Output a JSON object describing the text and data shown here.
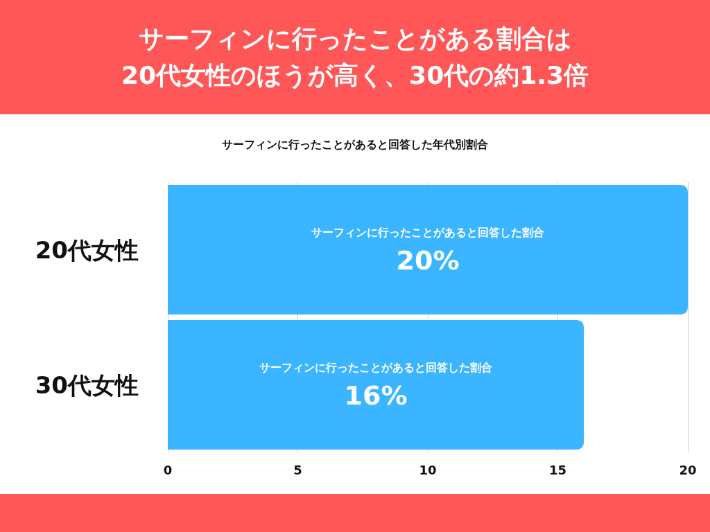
{
  "chart_data": {
    "type": "bar",
    "orientation": "horizontal",
    "title": "サーフィンに行ったことがある割合は\n20代女性のほうが高く、30代の約1.3倍",
    "subtitle": "サーフィンに行ったことがあると回答した年代別割合",
    "categories": [
      "20代女性",
      "30代女性"
    ],
    "series": [
      {
        "name": "サーフィンに行ったことがあると回答した割合",
        "color": "#3bb5ff",
        "values": [
          20,
          16
        ],
        "value_labels": [
          "20%",
          "16%"
        ]
      }
    ],
    "xlim": [
      0,
      20
    ],
    "xticks": [
      0,
      5,
      10,
      15,
      20
    ],
    "grid": "x",
    "legend": false
  }
}
